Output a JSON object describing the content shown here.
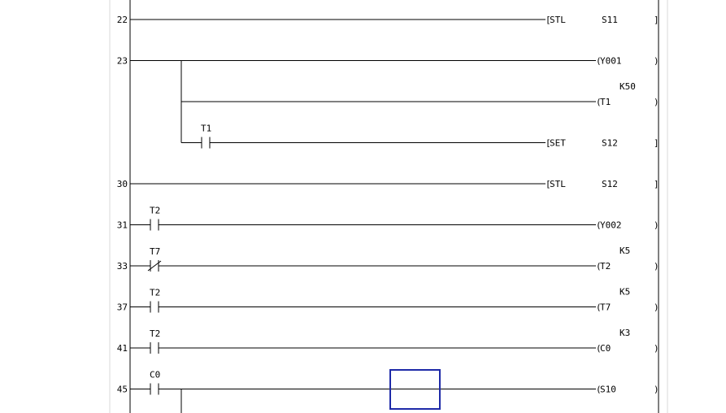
{
  "editor": {
    "cursor_color": "#1e2aa8",
    "rungs": [
      {
        "step": "22",
        "branches": [
          {
            "contacts": [],
            "output": {
              "kind": "instruction",
              "op": "STL",
              "arg": "S11"
            }
          }
        ]
      },
      {
        "step": "23",
        "branches": [
          {
            "contacts": [],
            "output": {
              "kind": "coil",
              "op": "Y001"
            }
          },
          {
            "contacts": [],
            "output": {
              "kind": "coil",
              "op": "T1",
              "constant": "K50"
            }
          },
          {
            "contacts": [
              {
                "name": "T1",
                "type": "NO"
              }
            ],
            "output": {
              "kind": "instruction",
              "op": "SET",
              "arg": "S12"
            }
          }
        ]
      },
      {
        "step": "30",
        "branches": [
          {
            "contacts": [],
            "output": {
              "kind": "instruction",
              "op": "STL",
              "arg": "S12"
            }
          }
        ]
      },
      {
        "step": "31",
        "branches": [
          {
            "contacts": [
              {
                "name": "T2",
                "type": "NO"
              }
            ],
            "output": {
              "kind": "coil",
              "op": "Y002"
            }
          }
        ]
      },
      {
        "step": "33",
        "branches": [
          {
            "contacts": [
              {
                "name": "T7",
                "type": "NC"
              }
            ],
            "output": {
              "kind": "coil",
              "op": "T2",
              "constant": "K5"
            }
          }
        ]
      },
      {
        "step": "37",
        "branches": [
          {
            "contacts": [
              {
                "name": "T2",
                "type": "NO"
              }
            ],
            "output": {
              "kind": "coil",
              "op": "T7",
              "constant": "K5"
            }
          }
        ]
      },
      {
        "step": "41",
        "branches": [
          {
            "contacts": [
              {
                "name": "T2",
                "type": "NO"
              }
            ],
            "output": {
              "kind": "coil",
              "op": "C0",
              "constant": "K3"
            }
          }
        ]
      },
      {
        "step": "45",
        "branches": [
          {
            "contacts": [
              {
                "name": "C0",
                "type": "NO"
              }
            ],
            "output": {
              "kind": "coil",
              "op": "S10"
            }
          }
        ],
        "continues": true
      }
    ]
  }
}
